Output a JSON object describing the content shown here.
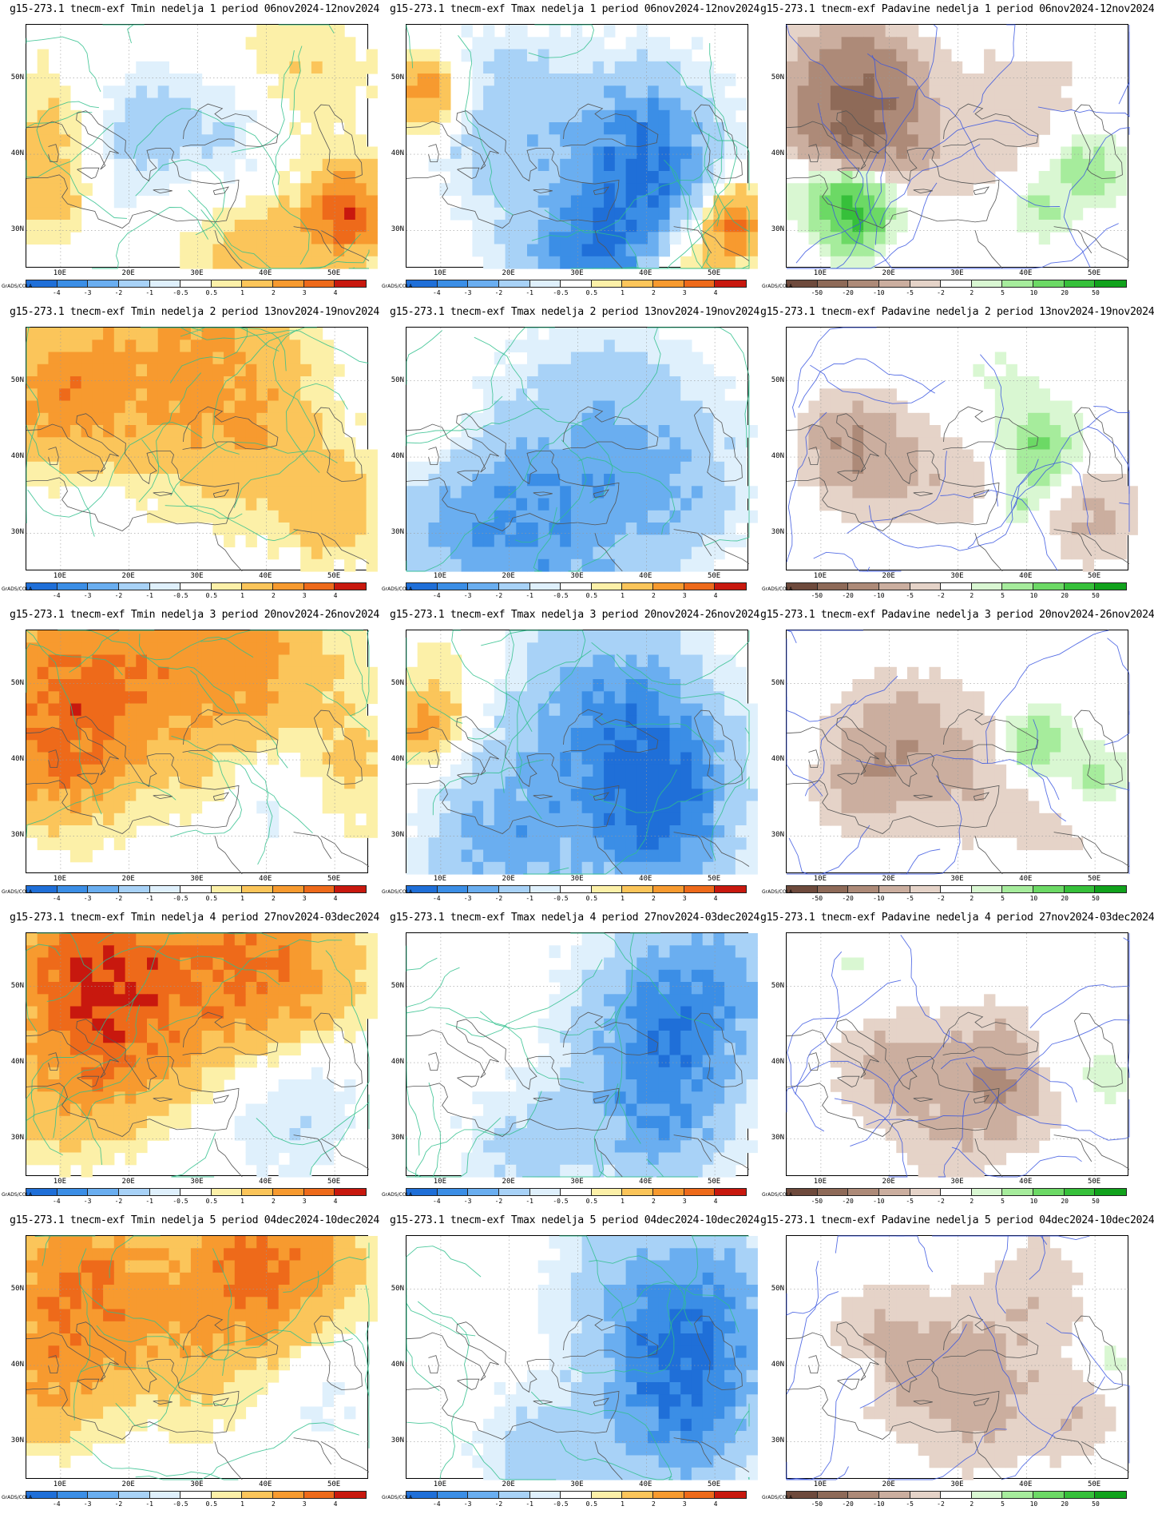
{
  "credit": "GrADS/COLA",
  "lat_labels": [
    "50N",
    "40N",
    "30N"
  ],
  "lon_labels": [
    "10E",
    "20E",
    "30E",
    "40E",
    "50E"
  ],
  "colorbars": {
    "temp": {
      "labels": [
        "-4",
        "-3",
        "-2",
        "-1",
        "-0.5",
        "0.5",
        "1",
        "2",
        "3",
        "4"
      ],
      "colors": [
        "#1f6fd8",
        "#3b8ee6",
        "#6aaef0",
        "#a8d2f7",
        "#dff0fc",
        "#ffffff",
        "#fcf0a8",
        "#fbc55a",
        "#f79a2f",
        "#ee6a1a",
        "#c8180e"
      ]
    },
    "precip": {
      "labels": [
        "-50",
        "-20",
        "-10",
        "-5",
        "-2",
        "2",
        "5",
        "10",
        "20",
        "50"
      ],
      "colors": [
        "#6e4a3c",
        "#8e6a58",
        "#ad8a78",
        "#cbae9f",
        "#e5d3c8",
        "#ffffff",
        "#d9f7d2",
        "#a6ec9c",
        "#6cd965",
        "#36c03a",
        "#11a21c"
      ]
    }
  },
  "rows": [
    {
      "tmin_title": "g15-273.1 tnecm-exf Tmin nedelja 1 period 06nov2024-12nov2024",
      "tmax_title": "g15-273.1 tnecm-exf Tmax nedelja 1 period 06nov2024-12nov2024",
      "prec_title": "g15-273.1 tnecm-exf Padavine nedelja 1 period 06nov2024-12nov2024"
    },
    {
      "tmin_title": "g15-273.1 tnecm-exf Tmin nedelja 2 period 13nov2024-19nov2024",
      "tmax_title": "g15-273.1 tnecm-exf Tmax nedelja 2 period 13nov2024-19nov2024",
      "prec_title": "g15-273.1 tnecm-exf Padavine nedelja 2 period 13nov2024-19nov2024"
    },
    {
      "tmin_title": "g15-273.1 tnecm-exf Tmin nedelja 3 period 20nov2024-26nov2024",
      "tmax_title": "g15-273.1 tnecm-exf Tmax nedelja 3 period 20nov2024-26nov2024",
      "prec_title": "g15-273.1 tnecm-exf Padavine nedelja 3 period 20nov2024-26nov2024"
    },
    {
      "tmin_title": "g15-273.1 tnecm-exf Tmin nedelja 4 period 27nov2024-03dec2024",
      "tmax_title": "g15-273.1 tnecm-exf Tmax nedelja 4 period 27nov2024-03dec2024",
      "prec_title": "g15-273.1 tnecm-exf Padavine nedelja 4 period 27nov2024-03dec2024"
    },
    {
      "tmin_title": "g15-273.1 tnecm-exf Tmin nedelja 5 period 04dec2024-10dec2024",
      "tmax_title": "g15-273.1 tnecm-exf Tmax nedelja 5 period 04dec2024-10dec2024",
      "prec_title": "g15-273.1 tnecm-exf Padavine nedelja 5 period 04dec2024-10dec2024"
    }
  ]
}
